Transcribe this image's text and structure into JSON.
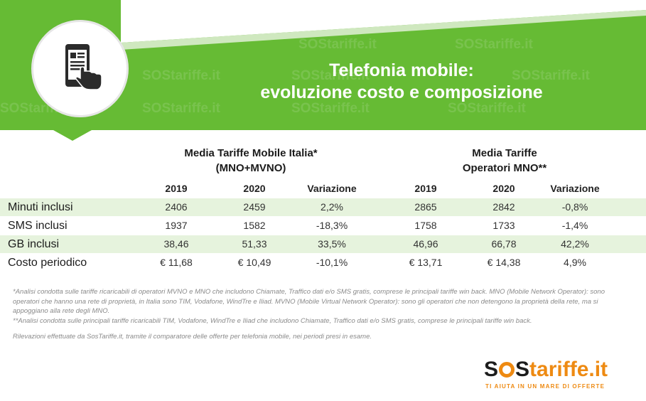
{
  "header": {
    "title_line1": "Telefonia mobile:",
    "title_line2": "evoluzione costo e composizione",
    "icon": "smartphone-touch-icon",
    "watermark": "SOStariffe.it"
  },
  "colors": {
    "banner_green": "#66bb34",
    "row_shade": "#e6f3dd",
    "logo_orange": "#ee8a12"
  },
  "table": {
    "group1_line1": "Media Tariffe Mobile Italia*",
    "group1_line2": "(MNO+MVNO)",
    "group2_line1": "Media Tariffe",
    "group2_line2": "Operatori MNO**",
    "columns": [
      "2019",
      "2020",
      "Variazione",
      "2019",
      "2020",
      "Variazione"
    ],
    "rows": [
      {
        "label": "Minuti inclusi",
        "values": [
          "2406",
          "2459",
          "2,2%",
          "2865",
          "2842",
          "-0,8%"
        ]
      },
      {
        "label": "SMS inclusi",
        "values": [
          "1937",
          "1582",
          "-18,3%",
          "1758",
          "1733",
          "-1,4%"
        ]
      },
      {
        "label": "GB inclusi",
        "values": [
          "38,46",
          "51,33",
          "33,5%",
          "46,96",
          "66,78",
          "42,2%"
        ]
      },
      {
        "label": "Costo periodico",
        "values": [
          "€ 11,68",
          "€ 10,49",
          "-10,1%",
          "€ 13,71",
          "€ 14,38",
          "4,9%"
        ]
      }
    ]
  },
  "notes": {
    "note1": "*Analisi condotta sulle tariffe ricaricabili di operatori MVNO e MNO che includono Chiamate, Traffico dati e/o SMS gratis, comprese le principali tariffe win back. MNO (Mobile Network Operator): sono operatori che hanno una rete di proprietà, in Italia sono TIM, Vodafone, WindTre e Iliad. MVNO (Mobile Virtual Network Operator): sono gli operatori che non detengono la proprietà della rete, ma si appoggiano alla rete degli MNO.",
    "note2": "**Analisi condotta sulle principali tariffe ricaricabili TIM, Vodafone, WindTre e Iliad che includono Chiamate, Traffico dati e/o SMS gratis, comprese le principali tariffe win back.",
    "note3": "Rilevazioni effettuate da SosTariffe.it, tramite il comparatore delle offerte per telefonia mobile, nei periodi presi in esame."
  },
  "logo": {
    "part1": "S",
    "part2": "S",
    "part3": "tariffe.it",
    "tagline": "TI AIUTA IN UN MARE DI OFFERTE"
  }
}
